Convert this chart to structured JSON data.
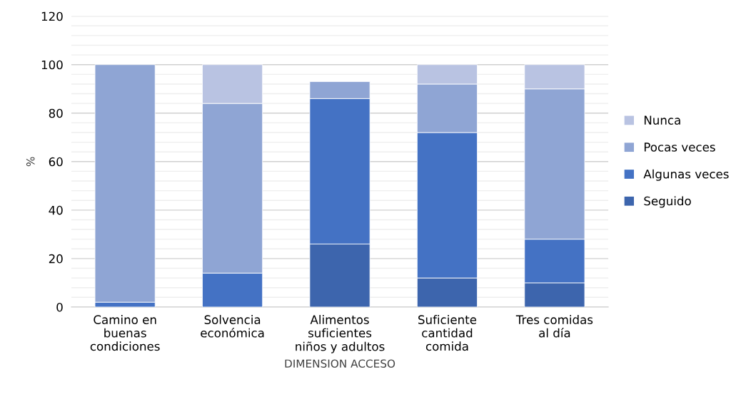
{
  "chart_data": {
    "type": "bar",
    "stacked": true,
    "xlabel": "DIMENSION ACCESO",
    "ylabel": "%",
    "categories": [
      "Camino en\nbuenas\ncondiciones",
      "Solvencia\neconómica",
      "Alimentos\nsuficientes\nniños y adultos",
      "Suficiente\ncantidad\ncomida",
      "Tres comidas\nal día"
    ],
    "series": [
      {
        "name": "Seguido",
        "color": "#3d65ad",
        "values": [
          null,
          null,
          26,
          12,
          10
        ]
      },
      {
        "name": "Algunas veces",
        "color": "#4472c4",
        "values": [
          2,
          14,
          60,
          60,
          18
        ]
      },
      {
        "name": "Pocas veces",
        "color": "#8fa5d4",
        "values": [
          98,
          70,
          7,
          20,
          62
        ]
      },
      {
        "name": "Nunca",
        "color": "#b9c3e2",
        "values": [
          null,
          16,
          null,
          8,
          10
        ]
      }
    ],
    "ylim": [
      0,
      120
    ],
    "yticks": [
      0,
      {
        "value": 4,
        "label": null
      },
      {
        "value": 8,
        "label": null
      },
      {
        "value": 12,
        "label": null
      },
      {
        "value": 16,
        "label": null
      },
      20,
      {
        "value": 24,
        "label": null
      },
      {
        "value": 28,
        "label": null
      },
      {
        "value": 32,
        "label": null
      },
      {
        "value": 36,
        "label": null
      },
      40,
      {
        "value": 44,
        "label": null
      },
      {
        "value": 48,
        "label": null
      },
      {
        "value": 52,
        "label": null
      },
      {
        "value": 56,
        "label": null
      },
      60,
      {
        "value": 64,
        "label": null
      },
      {
        "value": 68,
        "label": null
      },
      {
        "value": 72,
        "label": null
      },
      {
        "value": 76,
        "label": null
      },
      80,
      {
        "value": 84,
        "label": null
      },
      {
        "value": 88,
        "label": null
      },
      {
        "value": 92,
        "label": null
      },
      {
        "value": 96,
        "label": null
      },
      100,
      {
        "value": 104,
        "label": null
      },
      {
        "value": 108,
        "label": null
      },
      {
        "value": 112,
        "label": null
      },
      {
        "value": 116,
        "label": null
      },
      120
    ],
    "grid": "y",
    "legend": "right"
  }
}
